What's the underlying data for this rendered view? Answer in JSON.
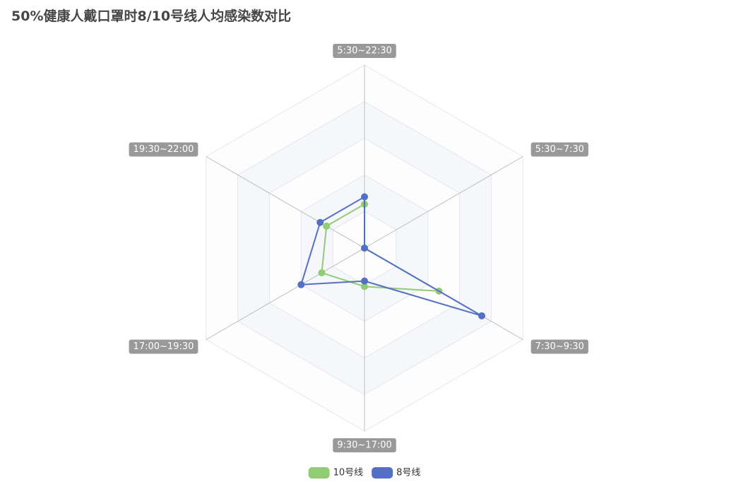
{
  "chart_data": {
    "type": "radar",
    "title": "50%健康人戴口罩时8/10号线人均感染数对比",
    "indicators": [
      "5:30~22:30",
      "5:30~7:30",
      "7:30~9:30",
      "9:30~17:00",
      "17:00~19:30",
      "19:30~22:00"
    ],
    "max": 1.0,
    "split_number": 5,
    "series": [
      {
        "name": "10号线",
        "color": "#91cc75",
        "values": [
          0.24,
          0.0,
          0.47,
          0.21,
          0.27,
          0.24
        ]
      },
      {
        "name": "8号线",
        "color": "#5470c6",
        "values": [
          0.28,
          0.0,
          0.74,
          0.18,
          0.4,
          0.28
        ]
      }
    ],
    "legend_position": "bottom-center"
  }
}
